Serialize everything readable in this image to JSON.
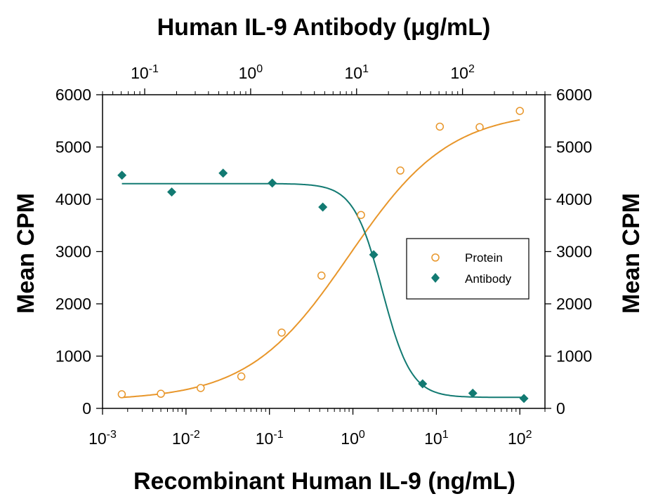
{
  "chart_data": {
    "type": "scatter",
    "title": "Human IL-9 Antibody (μg/mL)",
    "xlabel": "Recombinant Human IL-9 (ng/mL)",
    "ylabel": "Mean CPM",
    "ylabel_right": "Mean CPM",
    "x_scale": "log",
    "xlim": [
      0.001,
      200
    ],
    "ylim": [
      0,
      6000
    ],
    "x_ticks": [
      {
        "value": 0.001,
        "base": "10",
        "exp": "-3"
      },
      {
        "value": 0.01,
        "base": "10",
        "exp": "-2"
      },
      {
        "value": 0.1,
        "base": "10",
        "exp": "-1"
      },
      {
        "value": 1,
        "base": "10",
        "exp": "0"
      },
      {
        "value": 10,
        "base": "10",
        "exp": "1"
      },
      {
        "value": 100,
        "base": "10",
        "exp": "2"
      }
    ],
    "x2_scale": "log",
    "x2lim": [
      0.04,
      600
    ],
    "x2_ticks": [
      {
        "value": 0.1,
        "base": "10",
        "exp": "-1"
      },
      {
        "value": 1,
        "base": "10",
        "exp": "0"
      },
      {
        "value": 10,
        "base": "10",
        "exp": "1"
      },
      {
        "value": 100,
        "base": "10",
        "exp": "2"
      }
    ],
    "y_ticks": [
      0,
      1000,
      2000,
      3000,
      4000,
      5000,
      6000
    ],
    "y_tick_labels": [
      "0",
      "1000",
      "2000",
      "3000",
      "4000",
      "5000",
      "6000"
    ],
    "legend_position": "right",
    "grid": false,
    "series": [
      {
        "name": "Protein",
        "axis": "bottom",
        "marker": "open-circle",
        "color": "#E8962A",
        "points": [
          {
            "x": 0.0017,
            "y": 270
          },
          {
            "x": 0.005,
            "y": 280
          },
          {
            "x": 0.015,
            "y": 390
          },
          {
            "x": 0.046,
            "y": 610
          },
          {
            "x": 0.14,
            "y": 1450
          },
          {
            "x": 0.42,
            "y": 2540
          },
          {
            "x": 1.25,
            "y": 3700
          },
          {
            "x": 3.7,
            "y": 4550
          },
          {
            "x": 11,
            "y": 5390
          },
          {
            "x": 33,
            "y": 5380
          },
          {
            "x": 100,
            "y": 5690
          }
        ],
        "fit": {
          "bottom": 150,
          "top": 5700,
          "ec50": 0.9,
          "hill": 0.72
        }
      },
      {
        "name": "Antibody",
        "axis": "top",
        "marker": "filled-diamond",
        "color": "#127A72",
        "points": [
          {
            "x": 0.061,
            "y": 4460
          },
          {
            "x": 0.18,
            "y": 4140
          },
          {
            "x": 0.55,
            "y": 4500
          },
          {
            "x": 1.6,
            "y": 4310
          },
          {
            "x": 4.8,
            "y": 3850
          },
          {
            "x": 14.5,
            "y": 2940
          },
          {
            "x": 42,
            "y": 470
          },
          {
            "x": 125,
            "y": 290
          },
          {
            "x": 380,
            "y": 190
          }
        ],
        "fit": {
          "top": 4300,
          "bottom": 210,
          "ic50": 17.5,
          "hill": 3.2
        }
      }
    ]
  }
}
